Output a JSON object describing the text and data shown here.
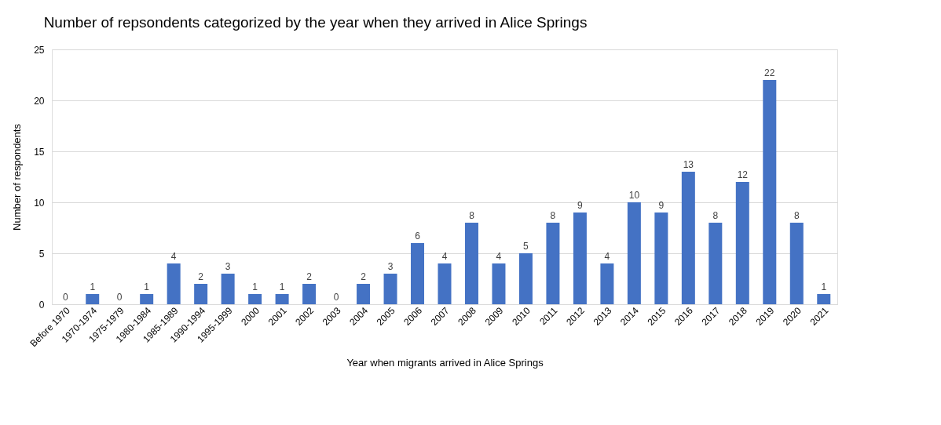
{
  "chart_data": {
    "type": "bar",
    "title": "Number  of repsondents categorized by the year when they arrived in Alice Springs",
    "xlabel": "Year when migrants arrived in Alice Springs",
    "ylabel": "Number of respondents",
    "categories": [
      "Before 1970",
      "1970-1974",
      "1975-1979",
      "1980-1984",
      "1985-1989",
      "1990-1994",
      "1995-1999",
      "2000",
      "2001",
      "2002",
      "2003",
      "2004",
      "2005",
      "2006",
      "2007",
      "2008",
      "2009",
      "2010",
      "2011",
      "2012",
      "2013",
      "2014",
      "2015",
      "2016",
      "2017",
      "2018",
      "2019",
      "2020",
      "2021"
    ],
    "values": [
      0,
      1,
      0,
      1,
      4,
      2,
      3,
      1,
      1,
      2,
      0,
      2,
      3,
      6,
      4,
      8,
      4,
      5,
      8,
      9,
      4,
      10,
      9,
      13,
      8,
      12,
      22,
      8,
      1
    ],
    "color": "#4472c4",
    "ylim": [
      0,
      25
    ],
    "yticks": [
      0,
      5,
      10,
      15,
      20,
      25
    ],
    "grid": "y",
    "data_labels": true
  }
}
